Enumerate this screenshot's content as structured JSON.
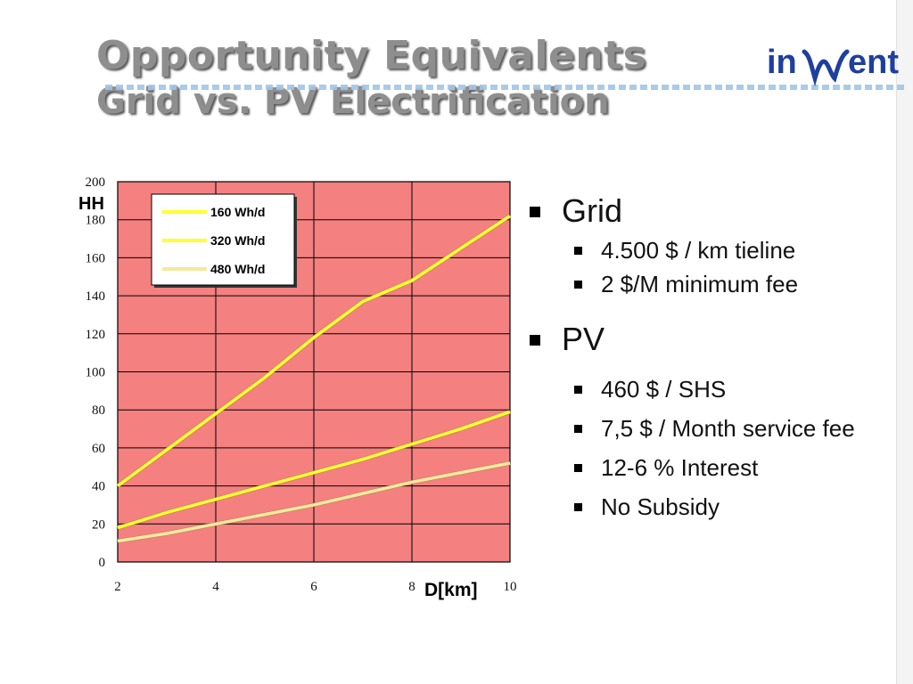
{
  "slide": {
    "title_line1": "Opportunity Equivalents",
    "title_line2": "Grid vs. PV Electrification",
    "logo_text_before": "in",
    "logo_text_after": "ent"
  },
  "colors": {
    "plot_bg": "#f48080",
    "line_160": "#ffff33",
    "line_320": "#ffff33",
    "line_480": "#f5e9a0",
    "title_text": "#8e8e8e",
    "logo_blue": "#1f3f9e"
  },
  "bullets": [
    {
      "label": "Grid",
      "items": [
        "4.500 $ / km tieline",
        "2 $/M minimum fee"
      ]
    },
    {
      "label": "PV",
      "items": [
        "460 $ / SHS",
        "7,5 $ / Month service fee",
        "12-6 % Interest",
        "No Subsidy"
      ]
    }
  ],
  "chart_data": {
    "type": "line",
    "xlabel": "D[km]",
    "ylabel": "HH",
    "xlim": [
      2,
      10
    ],
    "ylim": [
      0,
      200
    ],
    "x_ticks": [
      "2",
      "4",
      "6",
      "8",
      "10"
    ],
    "y_ticks": [
      "0",
      "20",
      "40",
      "60",
      "80",
      "100",
      "120",
      "140",
      "160",
      "180",
      "200"
    ],
    "grid": true,
    "legend_position": "top-left",
    "x": [
      2,
      3,
      4,
      5,
      6,
      7,
      8,
      9,
      10
    ],
    "series": [
      {
        "name": "160 Wh/d",
        "values": [
          40,
          59,
          78,
          97,
          118,
          137,
          148,
          165,
          182
        ]
      },
      {
        "name": "320 Wh/d",
        "values": [
          18,
          26,
          33,
          40,
          47,
          54,
          62,
          70,
          79
        ]
      },
      {
        "name": "480 Wh/d",
        "values": [
          11,
          15,
          20,
          25,
          30,
          36,
          42,
          47,
          52
        ]
      }
    ]
  }
}
